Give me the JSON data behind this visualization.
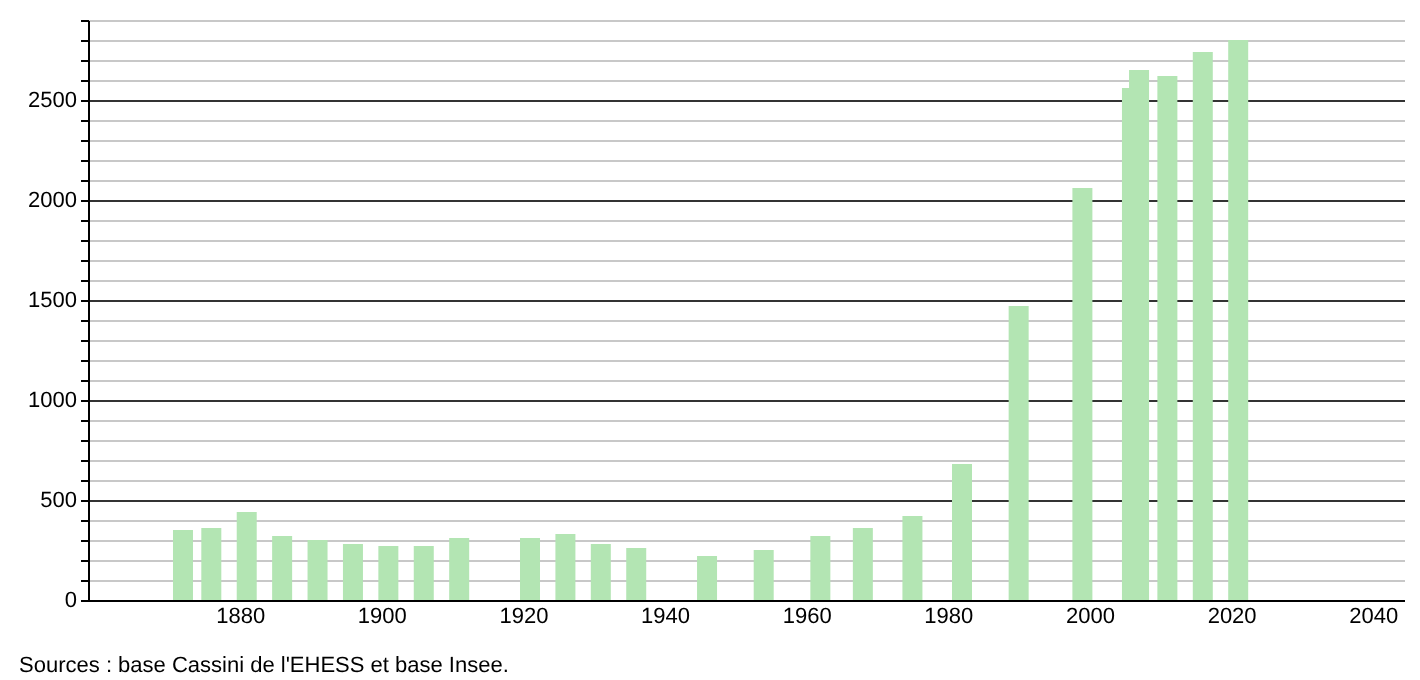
{
  "chart_data": {
    "type": "bar",
    "x": [
      1872,
      1876,
      1881,
      1886,
      1891,
      1896,
      1901,
      1906,
      1911,
      1921,
      1926,
      1931,
      1936,
      1946,
      1954,
      1962,
      1968,
      1975,
      1982,
      1990,
      1999,
      2006,
      2007,
      2011,
      2016,
      2021
    ],
    "values": [
      350,
      360,
      440,
      320,
      300,
      280,
      270,
      270,
      310,
      310,
      330,
      280,
      260,
      220,
      250,
      320,
      360,
      420,
      680,
      1470,
      2060,
      2560,
      2650,
      2620,
      2740,
      2800
    ],
    "color": "#b3e5b3",
    "xlim": [
      1860,
      2043
    ],
    "xticks": [
      1880,
      1900,
      1920,
      1940,
      1960,
      1980,
      2000,
      2020,
      2040
    ],
    "ylim": [
      0,
      2900
    ],
    "yticks": [
      0,
      {
        "value": 100,
        "label": null
      },
      {
        "value": 200,
        "label": null
      },
      {
        "value": 300,
        "label": null
      },
      {
        "value": 400,
        "label": null
      },
      500,
      {
        "value": 600,
        "label": null
      },
      {
        "value": 700,
        "label": null
      },
      {
        "value": 800,
        "label": null
      },
      {
        "value": 900,
        "label": null
      },
      1000,
      {
        "value": 1100,
        "label": null
      },
      {
        "value": 1200,
        "label": null
      },
      {
        "value": 1300,
        "label": null
      },
      {
        "value": 1400,
        "label": null
      },
      1500,
      {
        "value": 1600,
        "label": null
      },
      {
        "value": 1700,
        "label": null
      },
      {
        "value": 1800,
        "label": null
      },
      {
        "value": 1900,
        "label": null
      },
      2000,
      {
        "value": 2100,
        "label": null
      },
      {
        "value": 2200,
        "label": null
      },
      {
        "value": 2300,
        "label": null
      },
      {
        "value": 2400,
        "label": null
      },
      2500,
      {
        "value": 2600,
        "label": null
      },
      {
        "value": 2700,
        "label": null
      },
      {
        "value": 2800,
        "label": null
      },
      {
        "value": 2900,
        "label": null
      }
    ],
    "grid": "y",
    "annotations": [
      "Sources : base Cassini de l'EHESS et base Insee."
    ]
  }
}
